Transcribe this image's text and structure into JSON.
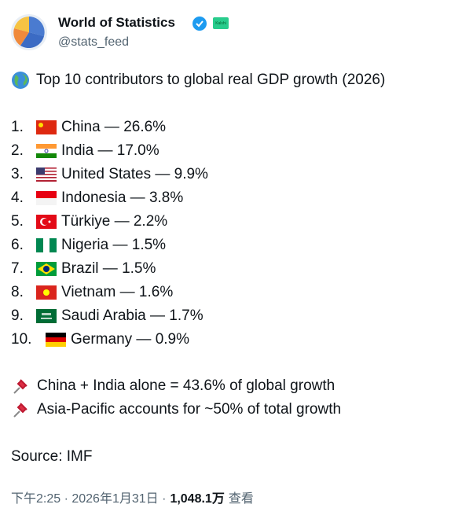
{
  "author": {
    "name": "World of Statistics",
    "handle": "@stats_feed",
    "badge": "Kalshi"
  },
  "tweet": {
    "headline": "Top 10 contributors to global real GDP growth (2026)",
    "items": [
      {
        "rank": "1.",
        "text": "China — 26.6%"
      },
      {
        "rank": "2.",
        "text": "India — 17.0%"
      },
      {
        "rank": "3.",
        "text": "United States — 9.9%"
      },
      {
        "rank": "4.",
        "text": "Indonesia — 3.8%"
      },
      {
        "rank": "5.",
        "text": "Türkiye — 2.2%"
      },
      {
        "rank": "6.",
        "text": "Nigeria — 1.5%"
      },
      {
        "rank": "7.",
        "text": "Brazil — 1.5%"
      },
      {
        "rank": "8.",
        "text": "Vietnam — 1.6%"
      },
      {
        "rank": "9.",
        "text": "Saudi Arabia — 1.7%"
      },
      {
        "rank": "10.",
        "text": "Germany — 0.9%"
      }
    ],
    "notes": [
      "China + India alone = 43.6% of global growth",
      "Asia-Pacific accounts for ~50% of total growth"
    ],
    "source": "Source: IMF"
  },
  "footer": {
    "meta": "下午2:25 · 2026年1月31日 ·",
    "views": "1,048.1万",
    "views_label": "查看"
  }
}
